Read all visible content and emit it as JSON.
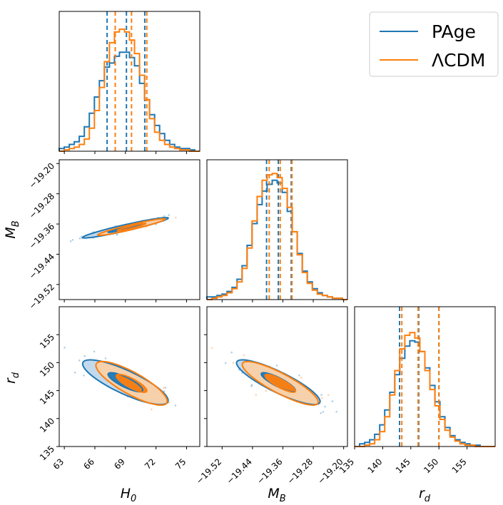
{
  "colors": {
    "page": "#1f77b4",
    "lcdm": "#ff7f0e",
    "page_fill": "#b9d3ea",
    "lcdm_fill": "#ffcf9f"
  },
  "legend": {
    "entries": [
      {
        "label": "PAge",
        "color": "#1f77b4"
      },
      {
        "label": "ΛCDM",
        "color": "#ff7f0e"
      }
    ],
    "placement": "top-right"
  },
  "axes": {
    "H0": {
      "label": "H",
      "sub": "0",
      "range": [
        62.5,
        76.3
      ],
      "ticks": [
        "63",
        "66",
        "69",
        "72",
        "75"
      ],
      "tick_values": [
        63,
        66,
        69,
        72,
        75
      ]
    },
    "MB": {
      "label": "M",
      "sub": "B",
      "range": [
        -19.56,
        -19.19
      ],
      "ticks": [
        "−19.52",
        "−19.44",
        "−19.36",
        "−19.28",
        "−19.20"
      ],
      "tick_values": [
        -19.52,
        -19.44,
        -19.36,
        -19.28,
        -19.2
      ]
    },
    "rd": {
      "label": "r",
      "sub": "d",
      "range": [
        135,
        160
      ],
      "ticks": [
        "135",
        "140",
        "145",
        "150",
        "155"
      ],
      "tick_values": [
        135,
        140,
        145,
        150,
        155
      ]
    }
  },
  "chart_data": {
    "type": "corner",
    "parameters": [
      "H0",
      "MB",
      "rd"
    ],
    "series": [
      {
        "name": "PAge",
        "quantiles": {
          "H0": [
            67.2,
            69.1,
            70.9
          ],
          "MB": [
            -19.403,
            -19.372,
            -19.338
          ],
          "rd": [
            143.0,
            146.4,
            150.0
          ]
        },
        "hist": {
          "H0": {
            "edges": [
              62.5,
              76.3
            ],
            "values": [
              0.02,
              0.03,
              0.05,
              0.07,
              0.11,
              0.18,
              0.28,
              0.4,
              0.52,
              0.62,
              0.65,
              0.7,
              0.73,
              0.73,
              0.69,
              0.63,
              0.5,
              0.38,
              0.27,
              0.19,
              0.13,
              0.08,
              0.05,
              0.03,
              0.02,
              0.02,
              0.01,
              0.0
            ]
          },
          "MB": {
            "edges": [
              -19.56,
              -19.19
            ],
            "values": [
              0.02,
              0.02,
              0.03,
              0.04,
              0.06,
              0.09,
              0.15,
              0.25,
              0.4,
              0.56,
              0.7,
              0.8,
              0.85,
              0.88,
              0.86,
              0.79,
              0.65,
              0.5,
              0.34,
              0.21,
              0.13,
              0.08,
              0.05,
              0.03,
              0.02,
              0.01,
              0.01,
              0.0
            ]
          },
          "rd": {
            "edges": [
              135,
              160
            ],
            "values": [
              0.0,
              0.02,
              0.03,
              0.05,
              0.09,
              0.16,
              0.27,
              0.4,
              0.53,
              0.65,
              0.74,
              0.78,
              0.77,
              0.7,
              0.58,
              0.45,
              0.33,
              0.22,
              0.14,
              0.08,
              0.05,
              0.03,
              0.02,
              0.01,
              0.01,
              0.0,
              0.0,
              0.0
            ]
          }
        },
        "contours": {
          "MB_vs_H0": {
            "center": [
              69.0,
              -19.37
            ],
            "outer": [
              4.2,
              0.027
            ],
            "inner": [
              1.7,
              0.012
            ],
            "corr": 0.95
          },
          "rd_vs_H0": {
            "center": [
              69.0,
              146.5
            ],
            "outer": [
              4.2,
              4.0
            ],
            "inner": [
              1.7,
              1.7
            ],
            "corr": -0.82
          },
          "rd_vs_MB": {
            "center": [
              -19.372,
              146.5
            ],
            "outer": [
              0.11,
              4.0
            ],
            "inner": [
              0.045,
              1.7
            ],
            "corr": -0.86
          }
        }
      },
      {
        "name": "ΛCDM",
        "quantiles": {
          "H0": [
            68.0,
            69.6,
            71.1
          ],
          "MB": [
            -19.396,
            -19.367,
            -19.336
          ],
          "rd": [
            143.4,
            146.3,
            150.0
          ]
        },
        "hist": {
          "H0": {
            "edges": [
              62.5,
              76.3
            ],
            "values": [
              0.0,
              0.01,
              0.02,
              0.03,
              0.05,
              0.09,
              0.17,
              0.3,
              0.47,
              0.66,
              0.8,
              0.88,
              0.9,
              0.88,
              0.82,
              0.72,
              0.56,
              0.38,
              0.24,
              0.14,
              0.08,
              0.05,
              0.03,
              0.02,
              0.01,
              0.01,
              0.0,
              0.0
            ]
          },
          "MB": {
            "edges": [
              -19.56,
              -19.19
            ],
            "values": [
              0.0,
              0.01,
              0.02,
              0.03,
              0.05,
              0.08,
              0.13,
              0.23,
              0.38,
              0.58,
              0.76,
              0.88,
              0.92,
              0.93,
              0.9,
              0.82,
              0.68,
              0.5,
              0.33,
              0.2,
              0.12,
              0.07,
              0.04,
              0.03,
              0.02,
              0.01,
              0.01,
              0.0
            ]
          },
          "rd": {
            "edges": [
              135,
              160
            ],
            "values": [
              0.0,
              0.0,
              0.01,
              0.02,
              0.05,
              0.11,
              0.22,
              0.38,
              0.56,
              0.72,
              0.82,
              0.84,
              0.8,
              0.7,
              0.56,
              0.42,
              0.3,
              0.2,
              0.12,
              0.07,
              0.04,
              0.02,
              0.01,
              0.01,
              0.0,
              0.0,
              0.0,
              0.0
            ]
          }
        },
        "contours": {
          "MB_vs_H0": {
            "center": [
              69.6,
              -19.368
            ],
            "outer": [
              3.3,
              0.022
            ],
            "inner": [
              1.4,
              0.01
            ],
            "corr": 0.95
          },
          "rd_vs_H0": {
            "center": [
              69.6,
              146.3
            ],
            "outer": [
              3.5,
              3.9
            ],
            "inner": [
              1.5,
              1.6
            ],
            "corr": -0.82
          },
          "rd_vs_MB": {
            "center": [
              -19.367,
              146.3
            ],
            "outer": [
              0.1,
              3.9
            ],
            "inner": [
              0.04,
              1.6
            ],
            "corr": -0.86
          }
        }
      }
    ],
    "grid": false
  }
}
